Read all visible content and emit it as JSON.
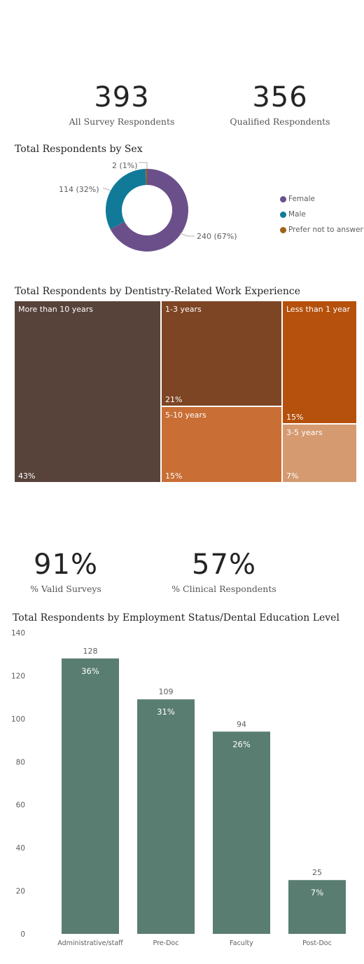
{
  "kpis_top": [
    {
      "value": "393",
      "label": "All Survey Respondents"
    },
    {
      "value": "356",
      "label": "Qualified Respondents"
    }
  ],
  "kpis_mid": [
    {
      "value": "91%",
      "label": "% Valid Surveys"
    },
    {
      "value": "57%",
      "label": "% Clinical Respondents"
    }
  ],
  "colors": {
    "female": "#6b4f8a",
    "male": "#117a99",
    "prefer_not": "#a0621a",
    "more_than_10": "#58433b",
    "one_to_three": "#7d4524",
    "less_than_1": "#b5510c",
    "five_to_ten": "#c96e35",
    "three_to_five": "#d59a70",
    "bar": "#5a7d72"
  },
  "chart_data": [
    {
      "type": "pie",
      "title": "Total Respondents by Sex",
      "slices": [
        {
          "label": "Female",
          "value": 240,
          "data_label": "240 (67%)"
        },
        {
          "label": "Male",
          "value": 114,
          "data_label": "114 (32%)"
        },
        {
          "label": "Prefer not to answer",
          "value": 2,
          "data_label": "2 (1%)"
        }
      ],
      "legend": "right"
    },
    {
      "type": "treemap",
      "title": "Total Respondents by Dentistry-Related Work Experience",
      "items": [
        {
          "label": "More than 10 years",
          "value": 43,
          "value_label": "43%"
        },
        {
          "label": "1-3 years",
          "value": 21,
          "value_label": "21%"
        },
        {
          "label": "Less than 1 year",
          "value": 15,
          "value_label": "15%"
        },
        {
          "label": "5-10 years",
          "value": 15,
          "value_label": "15%"
        },
        {
          "label": "3-5 years",
          "value": 7,
          "value_label": "7%"
        }
      ]
    },
    {
      "type": "bar",
      "title": "Total Respondents by Employment Status/Dental Education Level",
      "categories": [
        "Administrative/staff",
        "Pre-Doc",
        "Faculty",
        "Post-Doc"
      ],
      "values": [
        128,
        109,
        94,
        25
      ],
      "pct_labels": [
        "36%",
        "31%",
        "26%",
        "7%"
      ],
      "ylim": [
        0,
        140
      ],
      "yticks": [
        0,
        20,
        40,
        60,
        80,
        100,
        120,
        140
      ],
      "grid": false
    }
  ]
}
